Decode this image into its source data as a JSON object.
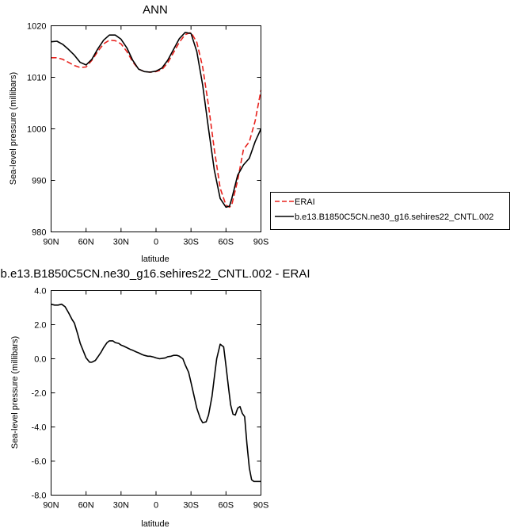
{
  "colors": {
    "erai": "#e8221d",
    "model": "#000000",
    "frame": "#000000"
  },
  "chart_data": [
    {
      "type": "line",
      "title": "ANN",
      "xlabel": "latitude",
      "ylabel": "Sea-level pressure (millibars)",
      "xlim": [
        90,
        -90
      ],
      "ylim": [
        980,
        1020
      ],
      "x_ticks": [
        {
          "value": 90,
          "label": "90N"
        },
        {
          "value": 60,
          "label": "60N"
        },
        {
          "value": 30,
          "label": "30N"
        },
        {
          "value": 0,
          "label": "0"
        },
        {
          "value": -30,
          "label": "30S"
        },
        {
          "value": -60,
          "label": "60S"
        },
        {
          "value": -90,
          "label": "90S"
        }
      ],
      "y_ticks": [
        {
          "value": 1020,
          "label": "1020"
        },
        {
          "value": 1010,
          "label": "1010"
        },
        {
          "value": 1000,
          "label": "1000"
        },
        {
          "value": 990,
          "label": "990"
        },
        {
          "value": 980,
          "label": "980"
        }
      ],
      "legend": {
        "placement": "right",
        "entries": [
          {
            "name": "ERAI",
            "style": "dashed",
            "color": "#e8221d"
          },
          {
            "name": "b.e13.B1850C5CN.ne30_g16.sehires22_CNTL.002",
            "style": "solid",
            "color": "#000000"
          }
        ]
      },
      "series": [
        {
          "name": "ERAI",
          "style": "dashed",
          "color": "#e8221d",
          "x": [
            90,
            85,
            80,
            75,
            70,
            65,
            60,
            55,
            50,
            45,
            40,
            35,
            30,
            25,
            20,
            15,
            10,
            5,
            0,
            -5,
            -10,
            -15,
            -20,
            -25,
            -30,
            -35,
            -40,
            -45,
            -50,
            -55,
            -60,
            -63,
            -65,
            -70,
            -75,
            -80,
            -85,
            -90
          ],
          "y": [
            1013.8,
            1013.8,
            1013.5,
            1012.9,
            1012.3,
            1011.9,
            1012.0,
            1013.3,
            1015.0,
            1016.5,
            1017.2,
            1017.1,
            1016.5,
            1015.0,
            1013.0,
            1011.6,
            1011.1,
            1011.0,
            1011.1,
            1011.5,
            1012.8,
            1014.8,
            1016.8,
            1018.3,
            1018.7,
            1016.8,
            1012.0,
            1004.5,
            996.0,
            988.5,
            985.2,
            984.8,
            985.3,
            990.0,
            996.0,
            997.5,
            1001.5,
            1007.5
          ]
        },
        {
          "name": "b.e13.B1850C5CN.ne30_g16.sehires22_CNTL.002",
          "style": "solid",
          "color": "#000000",
          "x": [
            90,
            85,
            80,
            75,
            70,
            65,
            60,
            55,
            50,
            45,
            40,
            35,
            30,
            25,
            20,
            15,
            10,
            5,
            0,
            -5,
            -10,
            -15,
            -20,
            -25,
            -30,
            -35,
            -40,
            -45,
            -50,
            -55,
            -60,
            -63,
            -65,
            -70,
            -75,
            -80,
            -85,
            -90
          ],
          "y": [
            1016.9,
            1017.0,
            1016.4,
            1015.4,
            1014.3,
            1012.9,
            1012.4,
            1013.5,
            1015.5,
            1017.2,
            1018.2,
            1018.2,
            1017.4,
            1015.7,
            1013.3,
            1011.6,
            1011.1,
            1011.0,
            1011.2,
            1011.8,
            1013.3,
            1015.4,
            1017.5,
            1018.7,
            1018.5,
            1015.0,
            1008.5,
            1000.0,
            992.0,
            986.5,
            984.8,
            985.0,
            986.5,
            991.0,
            993.0,
            994.3,
            997.5,
            1000.0
          ]
        }
      ]
    },
    {
      "type": "line",
      "title": "b.e13.B1850C5CN.ne30_g16.sehires22_CNTL.002 - ERAI",
      "xlabel": "latitude",
      "ylabel": "Sea-level pressure (millibars)",
      "xlim": [
        90,
        -90
      ],
      "ylim": [
        -8,
        4
      ],
      "x_ticks": [
        {
          "value": 90,
          "label": "90N"
        },
        {
          "value": 60,
          "label": "60N"
        },
        {
          "value": 30,
          "label": "30N"
        },
        {
          "value": 0,
          "label": "0"
        },
        {
          "value": -30,
          "label": "30S"
        },
        {
          "value": -60,
          "label": "60S"
        },
        {
          "value": -90,
          "label": "90S"
        }
      ],
      "y_ticks": [
        {
          "value": 4,
          "label": "4.0"
        },
        {
          "value": 2,
          "label": "2.0"
        },
        {
          "value": 0,
          "label": "0.0"
        },
        {
          "value": -2,
          "label": "-2.0"
        },
        {
          "value": -4,
          "label": "-4.0"
        },
        {
          "value": -6,
          "label": "-6.0"
        },
        {
          "value": -8,
          "label": "-8.0"
        }
      ],
      "series": [
        {
          "name": "",
          "style": "solid",
          "color": "#000000",
          "x": [
            90,
            87,
            84,
            81,
            78,
            75,
            72,
            70,
            67,
            65,
            62,
            60,
            57,
            55,
            52,
            50,
            47,
            45,
            42,
            40,
            37,
            35,
            32,
            30,
            28,
            25,
            22,
            20,
            17,
            15,
            12,
            10,
            7,
            5,
            2,
            0,
            -3,
            -5,
            -8,
            -10,
            -13,
            -15,
            -18,
            -20,
            -23,
            -25,
            -28,
            -30,
            -33,
            -35,
            -38,
            -40,
            -43,
            -45,
            -48,
            -50,
            -52,
            -55,
            -58,
            -60,
            -62,
            -64,
            -66,
            -68,
            -70,
            -72,
            -74,
            -76,
            -78,
            -80,
            -82,
            -84,
            -86,
            -88,
            -90
          ],
          "y": [
            3.2,
            3.15,
            3.15,
            3.2,
            3.05,
            2.7,
            2.3,
            2.1,
            1.4,
            0.9,
            0.4,
            0.05,
            -0.2,
            -0.2,
            -0.1,
            0.1,
            0.4,
            0.65,
            0.95,
            1.05,
            1.05,
            0.95,
            0.9,
            0.8,
            0.75,
            0.65,
            0.55,
            0.5,
            0.4,
            0.35,
            0.25,
            0.2,
            0.15,
            0.15,
            0.1,
            0.05,
            0.0,
            0.02,
            0.05,
            0.12,
            0.15,
            0.2,
            0.2,
            0.15,
            0.0,
            -0.35,
            -0.8,
            -1.4,
            -2.3,
            -2.9,
            -3.5,
            -3.75,
            -3.7,
            -3.3,
            -2.2,
            -1.1,
            0.0,
            0.85,
            0.7,
            -0.4,
            -1.6,
            -2.7,
            -3.25,
            -3.3,
            -2.9,
            -2.8,
            -3.2,
            -3.4,
            -5.0,
            -6.4,
            -7.1,
            -7.2,
            -7.2,
            -7.2,
            -7.2
          ]
        }
      ]
    }
  ]
}
